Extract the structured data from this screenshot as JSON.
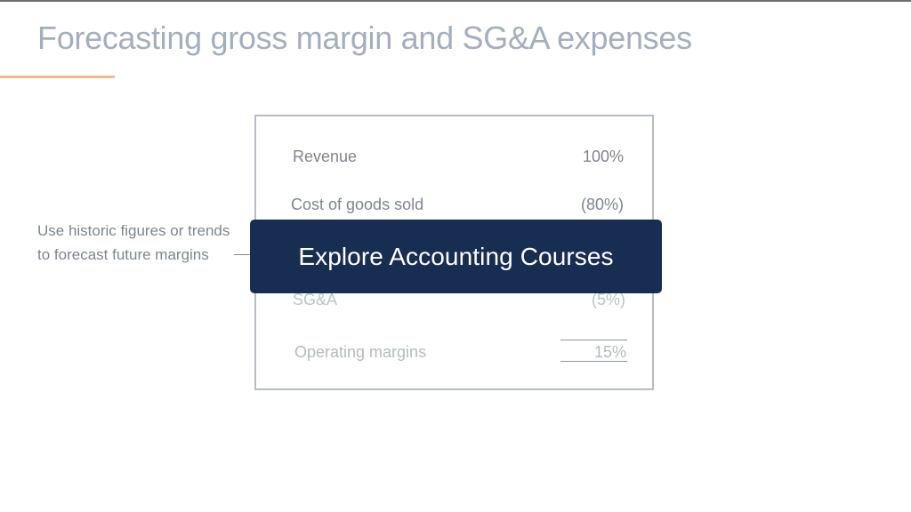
{
  "slide": {
    "title": "Forecasting gross margin and SG&A expenses",
    "side_note": "Use historic figures or trends to forecast future margins"
  },
  "table": {
    "rows": [
      {
        "label": "Revenue",
        "value": "100%"
      },
      {
        "label": "Cost of goods sold",
        "value": "(80%)"
      },
      {
        "label": "SG&A",
        "value": "(5%)"
      },
      {
        "label": "Operating margins",
        "value": "15%"
      }
    ]
  },
  "cta": {
    "label": "Explore Accounting Courses"
  },
  "colors": {
    "title": "#a3aebf",
    "accent": "#f3ba83",
    "banner": "#172d52",
    "table_border": "#b3bcc8",
    "text": "#7d8591"
  }
}
